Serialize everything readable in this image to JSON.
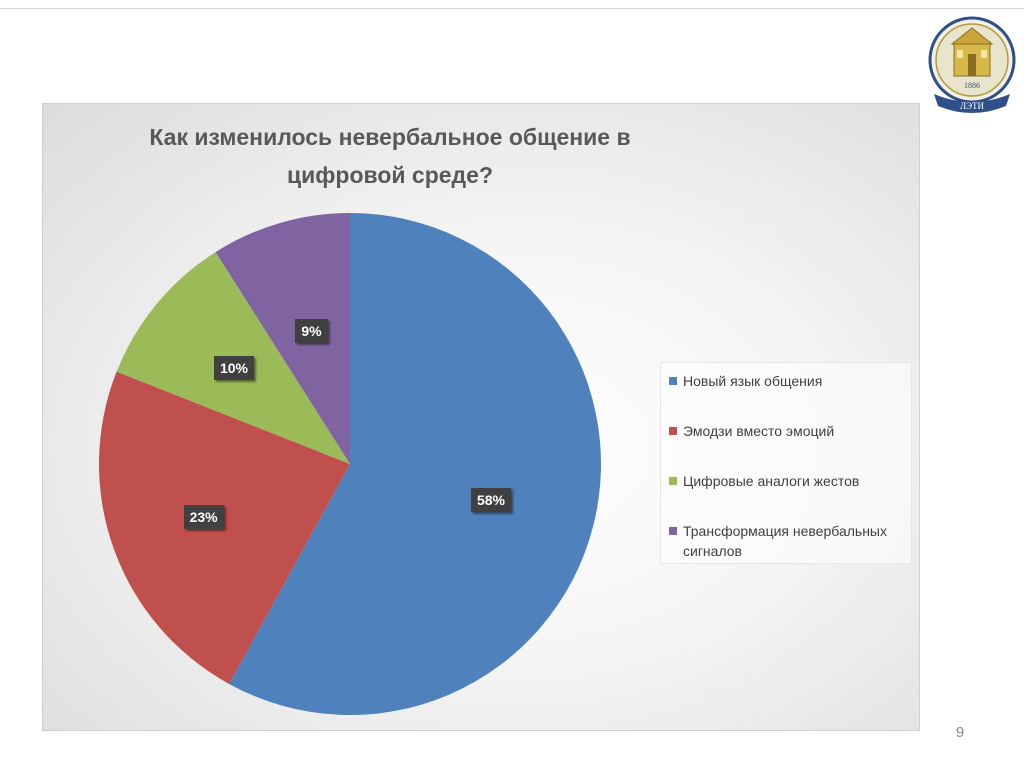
{
  "slide": {
    "page_number": "9"
  },
  "logo": {
    "year": "1886",
    "banner": "ЛЭТИ"
  },
  "colors": {
    "series": [
      "#4f81bd",
      "#c0504d",
      "#9bbb59",
      "#8064a2"
    ]
  },
  "chart_data": {
    "type": "pie",
    "title_lines": [
      "Как изменилось невербальное общение в",
      "цифровой среде?"
    ],
    "categories": [
      "Новый язык общения",
      "Эмодзи вместо эмоций",
      "Цифровые аналоги жестов",
      "Трансформация невербальных сигналов"
    ],
    "values": [
      58,
      23,
      10,
      9
    ],
    "value_labels": [
      "58%",
      "23%",
      "10%",
      "9%"
    ],
    "legend_position": "right"
  }
}
